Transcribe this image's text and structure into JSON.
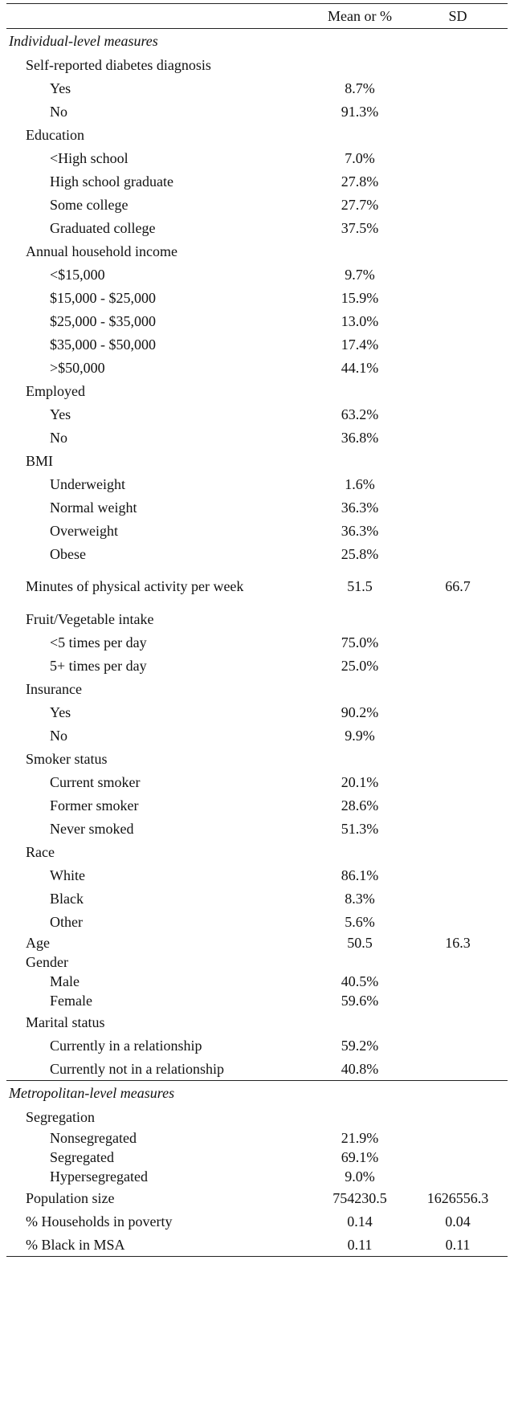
{
  "header": {
    "label": "",
    "mean": "Mean or %",
    "sd": "SD"
  },
  "sections": [
    {
      "title": "Individual-level measures",
      "rows": [
        {
          "type": "group",
          "label": "Self-reported diabetes diagnosis",
          "mean": "",
          "sd": ""
        },
        {
          "type": "item",
          "label": "Yes",
          "mean": "8.7%",
          "sd": ""
        },
        {
          "type": "item",
          "label": "No",
          "mean": "91.3%",
          "sd": ""
        },
        {
          "type": "group",
          "label": "Education",
          "mean": "",
          "sd": ""
        },
        {
          "type": "item",
          "label": "<High school",
          "mean": "7.0%",
          "sd": ""
        },
        {
          "type": "item",
          "label": "High school graduate",
          "mean": "27.8%",
          "sd": ""
        },
        {
          "type": "item",
          "label": "Some college",
          "mean": "27.7%",
          "sd": ""
        },
        {
          "type": "item",
          "label": "Graduated college",
          "mean": "37.5%",
          "sd": ""
        },
        {
          "type": "group",
          "label": "Annual household income",
          "mean": "",
          "sd": ""
        },
        {
          "type": "item",
          "label": "<$15,000",
          "mean": "9.7%",
          "sd": ""
        },
        {
          "type": "item",
          "label": "$15,000 - $25,000",
          "mean": "15.9%",
          "sd": ""
        },
        {
          "type": "item",
          "label": "$25,000 - $35,000",
          "mean": "13.0%",
          "sd": ""
        },
        {
          "type": "item",
          "label": "$35,000 - $50,000",
          "mean": "17.4%",
          "sd": ""
        },
        {
          "type": "item",
          "label": ">$50,000",
          "mean": "44.1%",
          "sd": ""
        },
        {
          "type": "group",
          "label": "Employed",
          "mean": "",
          "sd": ""
        },
        {
          "type": "item",
          "label": "Yes",
          "mean": "63.2%",
          "sd": ""
        },
        {
          "type": "item",
          "label": "No",
          "mean": "36.8%",
          "sd": ""
        },
        {
          "type": "group",
          "label": "BMI",
          "mean": "",
          "sd": ""
        },
        {
          "type": "item",
          "label": "Underweight",
          "mean": "1.6%",
          "sd": ""
        },
        {
          "type": "item",
          "label": "Normal weight",
          "mean": "36.3%",
          "sd": ""
        },
        {
          "type": "item",
          "label": "Overweight",
          "mean": "36.3%",
          "sd": ""
        },
        {
          "type": "item",
          "label": "Obese",
          "mean": "25.8%",
          "sd": ""
        },
        {
          "type": "tall",
          "label": "Minutes of physical activity per week",
          "mean": "51.5",
          "sd": "66.7"
        },
        {
          "type": "group",
          "label": "Fruit/Vegetable intake",
          "mean": "",
          "sd": ""
        },
        {
          "type": "item",
          "label": "<5 times per day",
          "mean": "75.0%",
          "sd": ""
        },
        {
          "type": "item",
          "label": "5+ times per day",
          "mean": "25.0%",
          "sd": ""
        },
        {
          "type": "group",
          "label": "Insurance",
          "mean": "",
          "sd": ""
        },
        {
          "type": "item",
          "label": "Yes",
          "mean": "90.2%",
          "sd": ""
        },
        {
          "type": "item",
          "label": "No",
          "mean": "9.9%",
          "sd": ""
        },
        {
          "type": "group",
          "label": "Smoker status",
          "mean": "",
          "sd": ""
        },
        {
          "type": "item",
          "label": "Current smoker",
          "mean": "20.1%",
          "sd": ""
        },
        {
          "type": "item",
          "label": "Former smoker",
          "mean": "28.6%",
          "sd": ""
        },
        {
          "type": "item",
          "label": "Never smoked",
          "mean": "51.3%",
          "sd": ""
        },
        {
          "type": "group",
          "label": "Race",
          "mean": "",
          "sd": ""
        },
        {
          "type": "item",
          "label": "White",
          "mean": "86.1%",
          "sd": ""
        },
        {
          "type": "item",
          "label": "Black",
          "mean": "8.3%",
          "sd": ""
        },
        {
          "type": "item",
          "label": "Other",
          "mean": "5.6%",
          "sd": ""
        },
        {
          "type": "group",
          "label": "Age",
          "mean": "50.5",
          "sd": "16.3",
          "tight": true
        },
        {
          "type": "group",
          "label": "Gender",
          "mean": "",
          "sd": "",
          "tight": true
        },
        {
          "type": "item",
          "label": "Male",
          "mean": "40.5%",
          "sd": "",
          "tight": true
        },
        {
          "type": "item",
          "label": "Female",
          "mean": "59.6%",
          "sd": "",
          "tight": true
        },
        {
          "type": "group",
          "label": "Marital status",
          "mean": "",
          "sd": ""
        },
        {
          "type": "item",
          "label": "Currently in a relationship",
          "mean": "59.2%",
          "sd": ""
        },
        {
          "type": "item",
          "label": "Currently not in a relationship",
          "mean": "40.8%",
          "sd": ""
        }
      ]
    },
    {
      "title": "Metropolitan-level measures",
      "rows": [
        {
          "type": "group",
          "label": "Segregation",
          "mean": "",
          "sd": ""
        },
        {
          "type": "item",
          "label": "Nonsegregated",
          "mean": "21.9%",
          "sd": "",
          "tight": true
        },
        {
          "type": "item",
          "label": "Segregated",
          "mean": "69.1%",
          "sd": "",
          "tight": true
        },
        {
          "type": "item",
          "label": "Hypersegregated",
          "mean": "9.0%",
          "sd": "",
          "tight": true
        },
        {
          "type": "group",
          "label": "Population size",
          "mean": "754230.5",
          "sd": "1626556.3"
        },
        {
          "type": "group",
          "label": "% Households in poverty",
          "mean": "0.14",
          "sd": "0.04"
        },
        {
          "type": "group",
          "label": "% Black in MSA",
          "mean": "0.11",
          "sd": "0.11"
        }
      ]
    }
  ]
}
